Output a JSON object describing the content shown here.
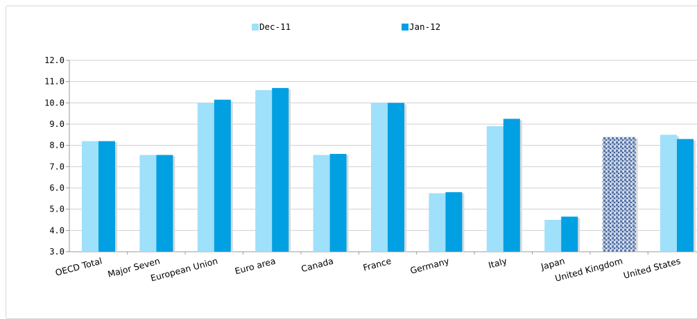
{
  "chart_data": {
    "type": "bar",
    "title": "",
    "xlabel": "",
    "ylabel": "",
    "ylim": [
      3.0,
      12.0
    ],
    "yticks": [
      "3.0",
      "4.0",
      "5.0",
      "6.0",
      "7.0",
      "8.0",
      "9.0",
      "10.0",
      "11.0",
      "12.0"
    ],
    "grid": true,
    "legend_position": "top-center",
    "categories": [
      "OECD Total",
      "Major Seven",
      "European Union",
      "Euro area",
      "Canada",
      "France",
      "Germany",
      "Italy",
      "Japan",
      "United Kingdom",
      "United States"
    ],
    "series": [
      {
        "name": "Dec-11",
        "color": "#9fe0fa",
        "values": [
          8.2,
          7.55,
          10.0,
          10.6,
          7.55,
          10.0,
          5.75,
          8.9,
          4.5,
          8.4,
          8.5
        ]
      },
      {
        "name": "Jan-12",
        "color": "#00a0e3",
        "values": [
          8.2,
          7.55,
          10.15,
          10.7,
          7.6,
          10.0,
          5.8,
          9.25,
          4.65,
          8.4,
          8.3
        ]
      }
    ]
  }
}
